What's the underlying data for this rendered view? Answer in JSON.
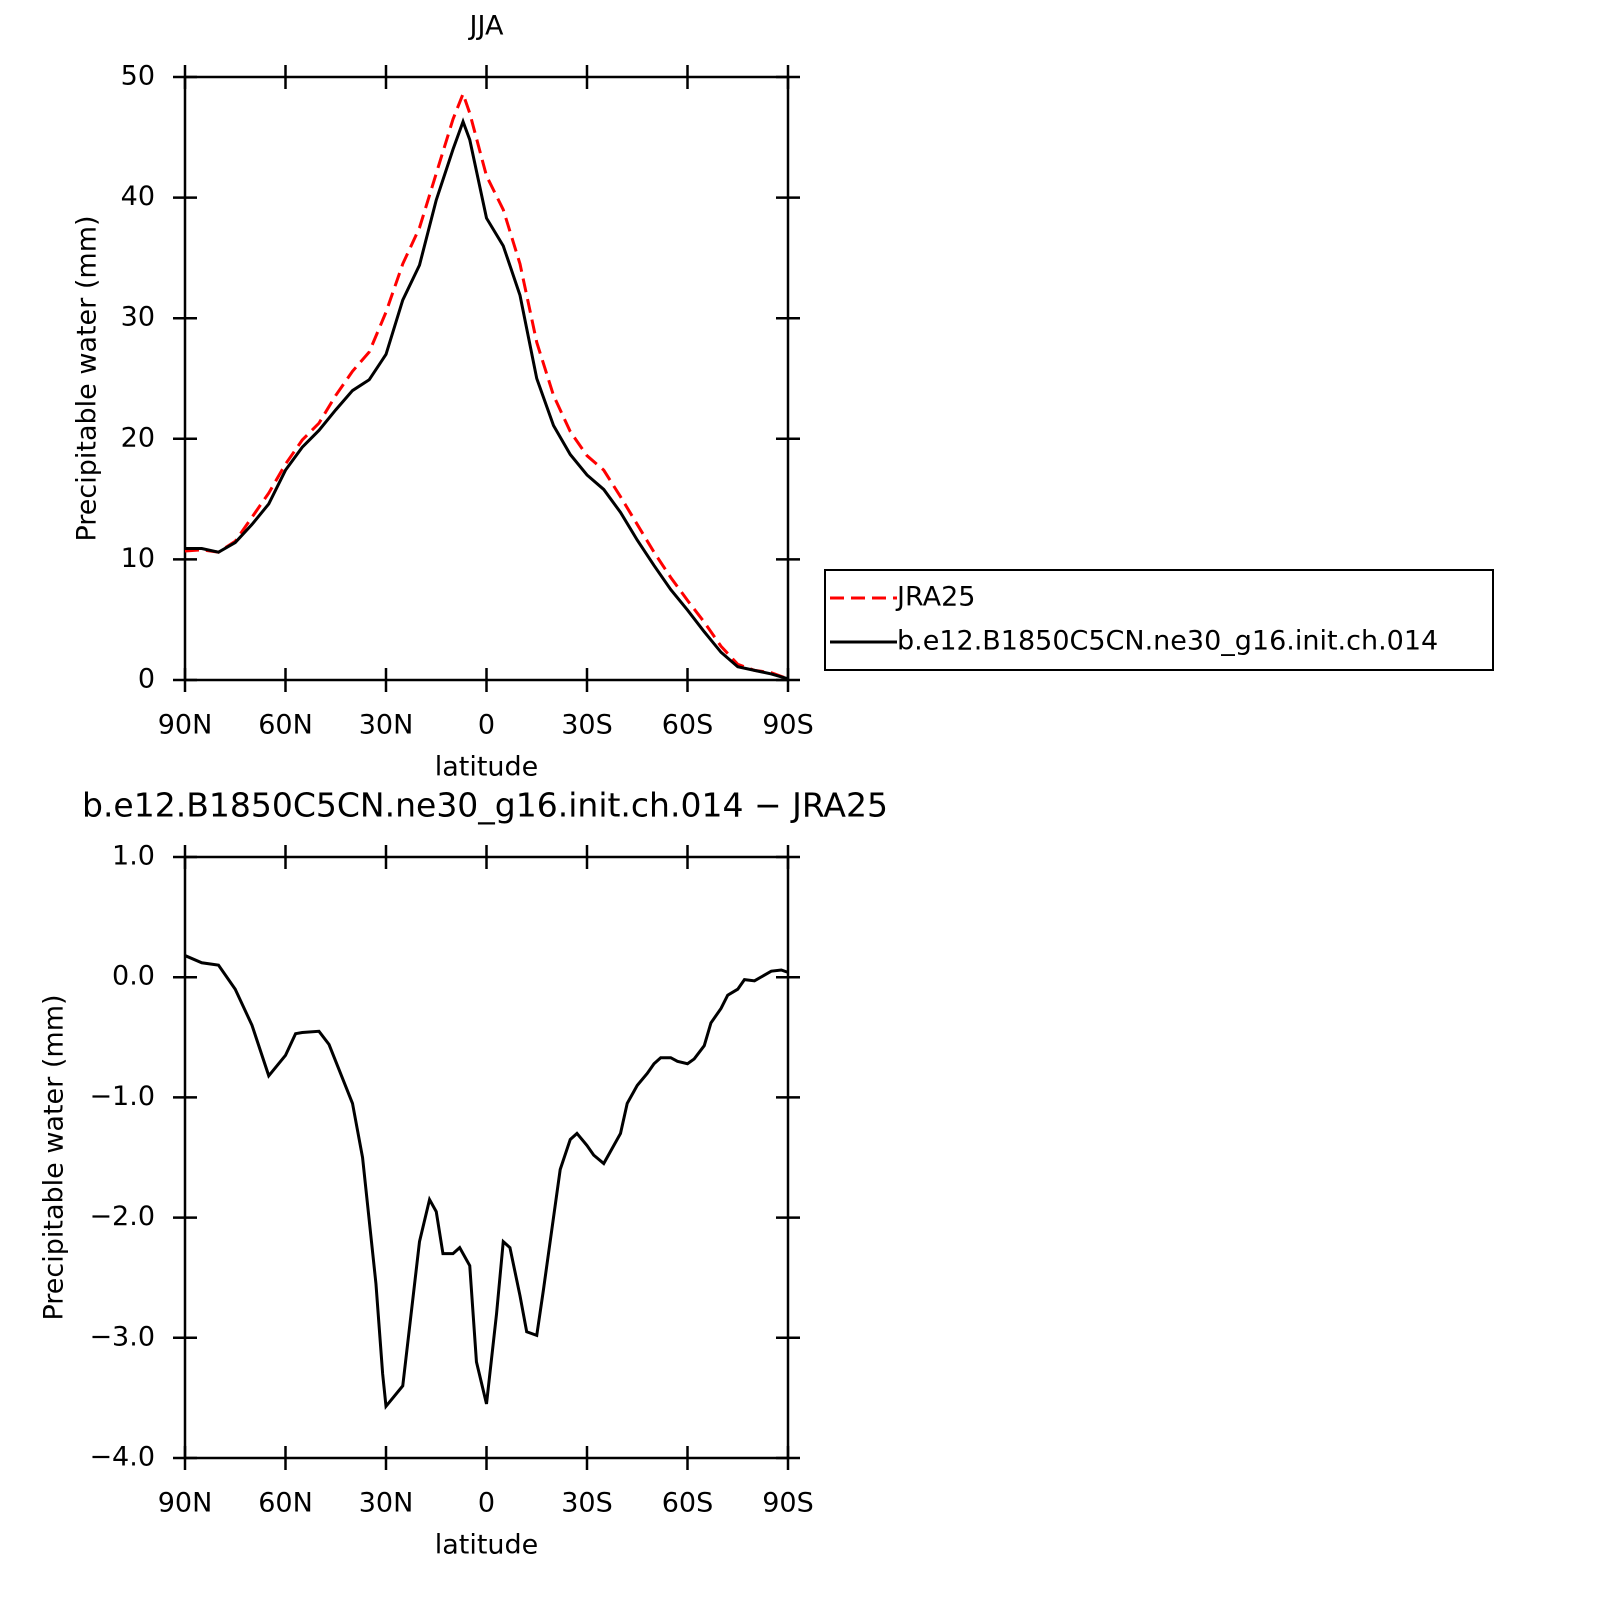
{
  "chart_data": [
    {
      "type": "line",
      "title": "JJA",
      "x_label": "latitude",
      "y_label": "Precipitable water (mm)",
      "x": [
        90,
        85,
        80,
        75,
        70,
        65,
        60,
        55,
        50,
        45,
        40,
        35,
        30,
        25,
        20,
        15,
        10,
        7,
        5,
        0,
        -5,
        -10,
        -15,
        -20,
        -25,
        -30,
        -35,
        -40,
        -45,
        -50,
        -55,
        -60,
        -65,
        -70,
        -75,
        -80,
        -85,
        -90
      ],
      "series": [
        {
          "name": "JRA25",
          "color": "#ff0000",
          "linestyle": "dashed",
          "values": [
            10.7,
            10.8,
            10.6,
            11.5,
            13.5,
            15.5,
            17.9,
            19.9,
            21.3,
            23.6,
            25.6,
            27.2,
            30.5,
            34.5,
            37.5,
            42,
            46.5,
            48.6,
            47,
            41.8,
            39,
            34.5,
            28,
            23.6,
            20.6,
            18.6,
            17.4,
            15.2,
            12.9,
            10.6,
            8.5,
            6.6,
            4.8,
            2.8,
            1.3,
            0.8,
            0.6,
            0.1
          ]
        },
        {
          "name": "b.e12.B1850C5CN.ne30_g16.init.ch.014",
          "color": "#000000",
          "linestyle": "solid",
          "values": [
            10.9,
            10.9,
            10.6,
            11.4,
            12.9,
            14.6,
            17.4,
            19.3,
            20.7,
            22.4,
            24,
            24.9,
            27,
            31.5,
            34.4,
            39.8,
            44,
            46.3,
            44.8,
            38.3,
            36,
            31.9,
            25,
            21.1,
            18.7,
            17,
            15.8,
            13.9,
            11.6,
            9.5,
            7.5,
            5.8,
            4,
            2.3,
            1.1,
            0.8,
            0.5,
            0.1
          ]
        }
      ],
      "xlim": [
        90,
        -90
      ],
      "xticks": [
        {
          "value": 90,
          "label": "90N"
        },
        {
          "value": 60,
          "label": "60N"
        },
        {
          "value": 30,
          "label": "30N"
        },
        0,
        {
          "value": -30,
          "label": "30S"
        },
        {
          "value": -60,
          "label": "60S"
        },
        {
          "value": -90,
          "label": "90S"
        }
      ],
      "ylim": [
        0,
        50
      ],
      "yticks": [
        0,
        10,
        20,
        30,
        40,
        50
      ],
      "legend": "right"
    },
    {
      "type": "line",
      "title": "b.e12.B1850C5CN.ne30_g16.init.ch.014 − JRA25",
      "x_label": "latitude",
      "y_label": "Precipitable water (mm)",
      "x": [
        90,
        85,
        80,
        75,
        70,
        65,
        60,
        57,
        55,
        50,
        47,
        40,
        37,
        33,
        31,
        30,
        25,
        20,
        17,
        15,
        13,
        10,
        8,
        5,
        3,
        0,
        -3,
        -5,
        -7,
        -10,
        -12,
        -15,
        -17,
        -20,
        -22,
        -25,
        -27,
        -30,
        -32,
        -35,
        -37,
        -40,
        -42,
        -45,
        -48,
        -50,
        -52,
        -55,
        -57,
        -60,
        -62,
        -65,
        -67,
        -70,
        -72,
        -75,
        -77,
        -80,
        -85,
        -88,
        -90
      ],
      "values": [
        0.18,
        0.12,
        0.1,
        -0.1,
        -0.4,
        -0.82,
        -0.65,
        -0.47,
        -0.46,
        -0.45,
        -0.56,
        -1.05,
        -1.5,
        -2.55,
        -3.3,
        -3.57,
        -3.4,
        -2.2,
        -1.85,
        -1.95,
        -2.3,
        -2.3,
        -2.25,
        -2.4,
        -3.2,
        -3.55,
        -2.8,
        -2.2,
        -2.25,
        -2.65,
        -2.95,
        -2.98,
        -2.6,
        -2,
        -1.6,
        -1.35,
        -1.3,
        -1.4,
        -1.48,
        -1.55,
        -1.45,
        -1.3,
        -1.05,
        -0.9,
        -0.8,
        -0.72,
        -0.67,
        -0.67,
        -0.7,
        -0.72,
        -0.68,
        -0.57,
        -0.38,
        -0.26,
        -0.15,
        -0.1,
        -0.02,
        -0.03,
        0.05,
        0.06,
        0.04
      ],
      "color": "#000000",
      "xlim": [
        90,
        -90
      ],
      "xticks": [
        {
          "value": 90,
          "label": "90N"
        },
        {
          "value": 60,
          "label": "60N"
        },
        {
          "value": 30,
          "label": "30N"
        },
        0,
        {
          "value": -30,
          "label": "30S"
        },
        {
          "value": -60,
          "label": "60S"
        },
        {
          "value": -90,
          "label": "90S"
        }
      ],
      "ylim": [
        -4,
        1
      ],
      "yticks": [
        {
          "value": -4,
          "label": "−4.0"
        },
        {
          "value": -3,
          "label": "−3.0"
        },
        {
          "value": -2,
          "label": "−2.0"
        },
        {
          "value": -1,
          "label": "−1.0"
        },
        {
          "value": 0,
          "label": "0.0"
        },
        {
          "value": 1,
          "label": "1.0"
        }
      ]
    }
  ]
}
